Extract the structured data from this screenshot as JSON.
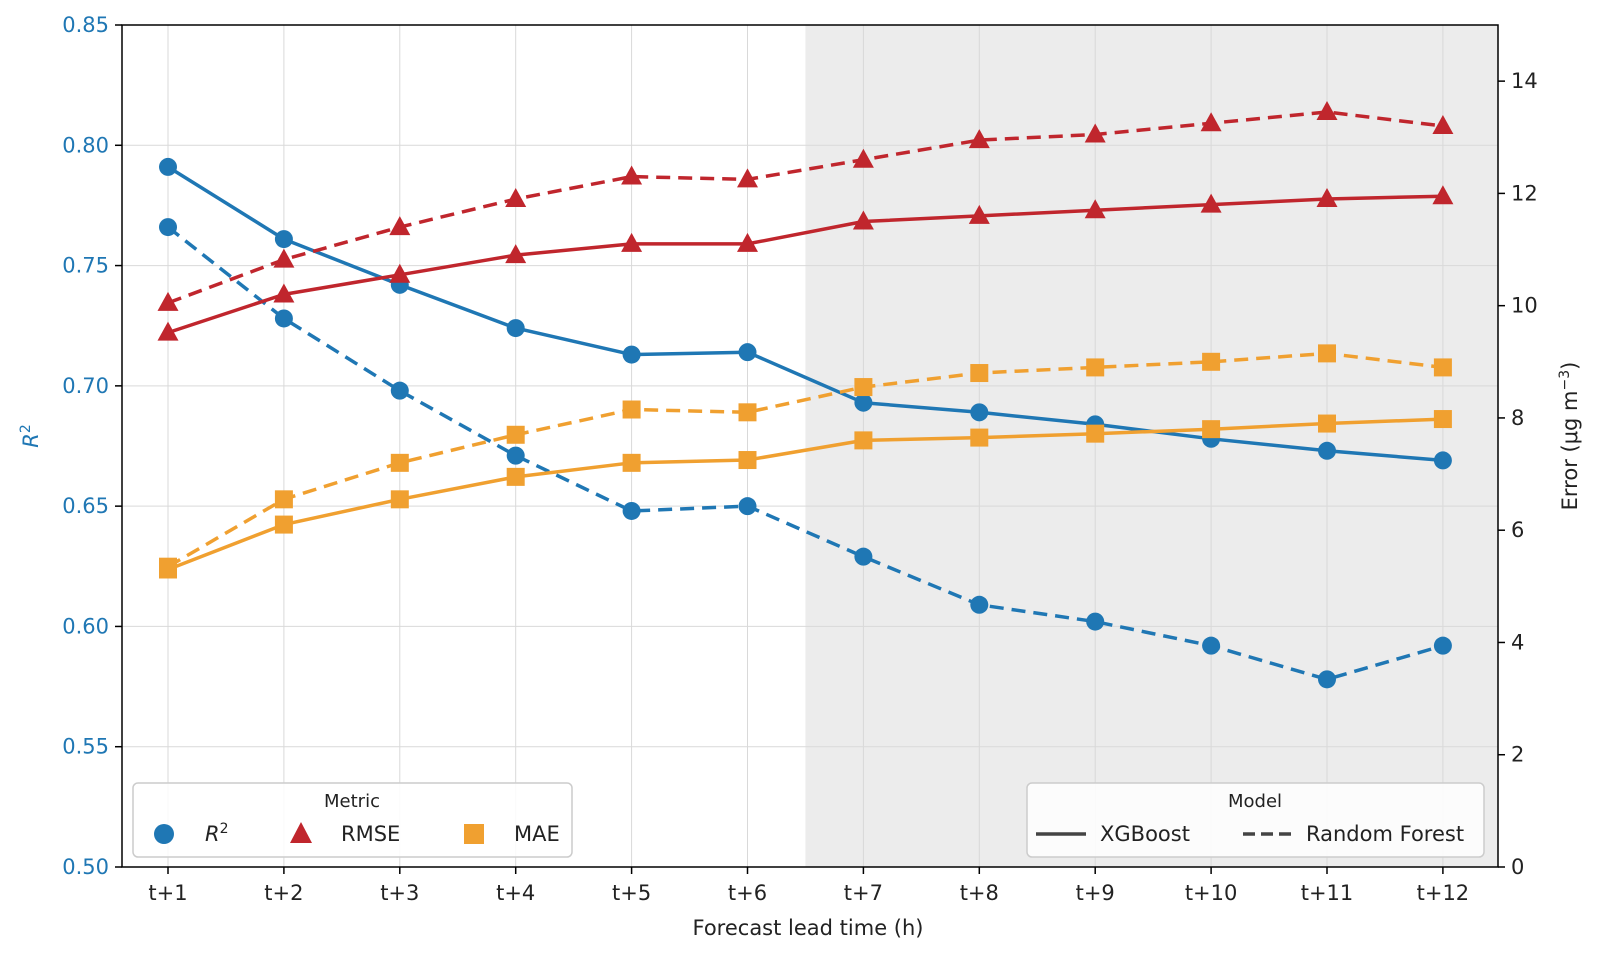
{
  "chart_data": {
    "type": "line",
    "title": "",
    "xlabel": "Forecast lead time (h)",
    "ylabel_left_symbol": "R",
    "ylabel_left_sup": "2",
    "ylabel_right": "Error (μg m",
    "ylabel_right_sup": "−3",
    "ylabel_right_close": ")",
    "categories": [
      "t+1",
      "t+2",
      "t+3",
      "t+4",
      "t+5",
      "t+6",
      "t+7",
      "t+8",
      "t+9",
      "t+10",
      "t+11",
      "t+12"
    ],
    "y_left_lim": [
      0.5,
      0.85
    ],
    "y_left_ticks": [
      "0.50",
      "0.55",
      "0.60",
      "0.65",
      "0.70",
      "0.75",
      "0.80",
      "0.85"
    ],
    "y_right_lim": [
      0,
      15
    ],
    "y_right_ticks": [
      "0",
      "2",
      "4",
      "6",
      "8",
      "10",
      "12",
      "14"
    ],
    "shaded_region_from_category": "t+7",
    "grid": true,
    "colors": {
      "r2": "#1f77b4",
      "rmse": "#c0262d",
      "mae": "#f0a030",
      "shade": "#ececec",
      "legend_line": "#444444"
    },
    "series": [
      {
        "metric": "R2",
        "model": "XGBoost",
        "axis": "left",
        "values": [
          0.791,
          0.761,
          0.742,
          0.724,
          0.713,
          0.714,
          0.693,
          0.689,
          0.684,
          0.678,
          0.673,
          0.669
        ]
      },
      {
        "metric": "R2",
        "model": "Random Forest",
        "axis": "left",
        "values": [
          0.766,
          0.728,
          0.698,
          0.671,
          0.648,
          0.65,
          0.629,
          0.609,
          0.602,
          0.592,
          0.578,
          0.592
        ]
      },
      {
        "metric": "RMSE",
        "model": "XGBoost",
        "axis": "right",
        "values": [
          9.52,
          10.2,
          10.55,
          10.9,
          11.1,
          11.1,
          11.5,
          11.6,
          11.7,
          11.8,
          11.9,
          11.95
        ]
      },
      {
        "metric": "RMSE",
        "model": "Random Forest",
        "axis": "right",
        "values": [
          10.05,
          10.82,
          11.4,
          11.9,
          12.3,
          12.25,
          12.6,
          12.95,
          13.05,
          13.25,
          13.45,
          13.2
        ]
      },
      {
        "metric": "MAE",
        "model": "XGBoost",
        "axis": "right",
        "values": [
          5.3,
          6.1,
          6.55,
          6.95,
          7.2,
          7.25,
          7.6,
          7.65,
          7.72,
          7.8,
          7.9,
          7.98
        ]
      },
      {
        "metric": "MAE",
        "model": "Random Forest",
        "axis": "right",
        "values": [
          5.35,
          6.55,
          7.2,
          7.7,
          8.15,
          8.1,
          8.55,
          8.8,
          8.9,
          9.0,
          9.15,
          8.9
        ]
      }
    ],
    "legend_metric": {
      "title": "Metric",
      "placement": "lower-left",
      "items": [
        {
          "symbol": "R",
          "sup": "2",
          "marker": "circle"
        },
        {
          "label": "RMSE",
          "marker": "triangle"
        },
        {
          "label": "MAE",
          "marker": "square"
        }
      ]
    },
    "legend_model": {
      "title": "Model",
      "placement": "lower-right",
      "items": [
        {
          "label": "XGBoost",
          "style": "solid"
        },
        {
          "label": "Random Forest",
          "style": "dashed"
        }
      ]
    }
  }
}
